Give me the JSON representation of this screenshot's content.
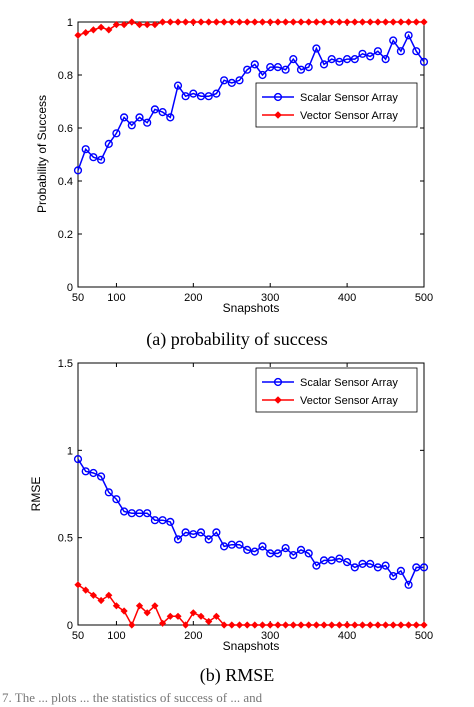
{
  "chart_data": [
    {
      "type": "line",
      "panel_caption": "(a) probability of success",
      "xlabel": "Snapshots",
      "ylabel": "Probability of Success",
      "xlim": [
        50,
        500
      ],
      "ylim": [
        0,
        1
      ],
      "x_ticks": [
        "50",
        "100",
        "200",
        "300",
        "400",
        "500"
      ],
      "y_ticks": [
        "0",
        "0.2",
        "0.4",
        "0.6",
        "0.8",
        "1"
      ],
      "legend_position": "upper-right",
      "x": [
        50,
        60,
        70,
        80,
        90,
        100,
        110,
        120,
        130,
        140,
        150,
        160,
        170,
        180,
        190,
        200,
        210,
        220,
        230,
        240,
        250,
        260,
        270,
        280,
        290,
        300,
        310,
        320,
        330,
        340,
        350,
        360,
        370,
        380,
        390,
        400,
        410,
        420,
        430,
        440,
        450,
        460,
        470,
        480,
        490,
        500
      ],
      "series": [
        {
          "name": "Scalar Sensor Array",
          "color": "#0000ff",
          "marker": "circle",
          "values": [
            0.44,
            0.52,
            0.49,
            0.48,
            0.54,
            0.58,
            0.64,
            0.61,
            0.64,
            0.62,
            0.67,
            0.66,
            0.64,
            0.76,
            0.72,
            0.73,
            0.72,
            0.72,
            0.73,
            0.78,
            0.77,
            0.78,
            0.82,
            0.84,
            0.8,
            0.83,
            0.83,
            0.82,
            0.86,
            0.82,
            0.83,
            0.9,
            0.84,
            0.86,
            0.85,
            0.86,
            0.86,
            0.88,
            0.87,
            0.89,
            0.86,
            0.93,
            0.89,
            0.95,
            0.89,
            0.85
          ]
        },
        {
          "name": "Vector Sensor Array",
          "color": "#ff0000",
          "marker": "diamond",
          "values": [
            0.95,
            0.96,
            0.97,
            0.98,
            0.97,
            0.99,
            0.99,
            1.0,
            0.99,
            0.99,
            0.99,
            1.0,
            1.0,
            1.0,
            1.0,
            1.0,
            1.0,
            1.0,
            1.0,
            1.0,
            1.0,
            1.0,
            1.0,
            1.0,
            1.0,
            1.0,
            1.0,
            1.0,
            1.0,
            1.0,
            1.0,
            1.0,
            1.0,
            1.0,
            1.0,
            1.0,
            1.0,
            1.0,
            1.0,
            1.0,
            1.0,
            1.0,
            1.0,
            1.0,
            1.0,
            1.0
          ]
        }
      ]
    },
    {
      "type": "line",
      "panel_caption": "(b) RMSE",
      "xlabel": "Snapshots",
      "ylabel": "RMSE",
      "xlim": [
        50,
        500
      ],
      "ylim": [
        0,
        1.5
      ],
      "x_ticks": [
        "50",
        "100",
        "200",
        "300",
        "400",
        "500"
      ],
      "y_ticks": [
        "0",
        "0.5",
        "1",
        "1.5"
      ],
      "legend_position": "upper-right",
      "x": [
        50,
        60,
        70,
        80,
        90,
        100,
        110,
        120,
        130,
        140,
        150,
        160,
        170,
        180,
        190,
        200,
        210,
        220,
        230,
        240,
        250,
        260,
        270,
        280,
        290,
        300,
        310,
        320,
        330,
        340,
        350,
        360,
        370,
        380,
        390,
        400,
        410,
        420,
        430,
        440,
        450,
        460,
        470,
        480,
        490,
        500
      ],
      "series": [
        {
          "name": "Scalar Sensor Array",
          "color": "#0000ff",
          "marker": "circle",
          "values": [
            0.95,
            0.88,
            0.87,
            0.85,
            0.76,
            0.72,
            0.65,
            0.64,
            0.64,
            0.64,
            0.6,
            0.6,
            0.59,
            0.49,
            0.53,
            0.52,
            0.53,
            0.49,
            0.53,
            0.45,
            0.46,
            0.46,
            0.43,
            0.42,
            0.45,
            0.41,
            0.41,
            0.44,
            0.4,
            0.43,
            0.41,
            0.34,
            0.37,
            0.37,
            0.38,
            0.36,
            0.33,
            0.35,
            0.35,
            0.33,
            0.34,
            0.28,
            0.31,
            0.23,
            0.33,
            0.33
          ]
        },
        {
          "name": "Vector Sensor Array",
          "color": "#ff0000",
          "marker": "diamond",
          "values": [
            0.23,
            0.2,
            0.17,
            0.14,
            0.17,
            0.11,
            0.08,
            0.0,
            0.11,
            0.07,
            0.11,
            0.01,
            0.05,
            0.05,
            0.0,
            0.07,
            0.05,
            0.02,
            0.05,
            0.0,
            0.0,
            0.0,
            0.0,
            0.0,
            0.0,
            0.0,
            0.0,
            0.0,
            0.0,
            0.0,
            0.0,
            0.0,
            0.0,
            0.0,
            0.0,
            0.0,
            0.0,
            0.0,
            0.0,
            0.0,
            0.0,
            0.0,
            0.0,
            0.0,
            0.0,
            0.0
          ]
        }
      ]
    }
  ],
  "footnote": "7.   The ... plots ... the statistics of success of ... and"
}
